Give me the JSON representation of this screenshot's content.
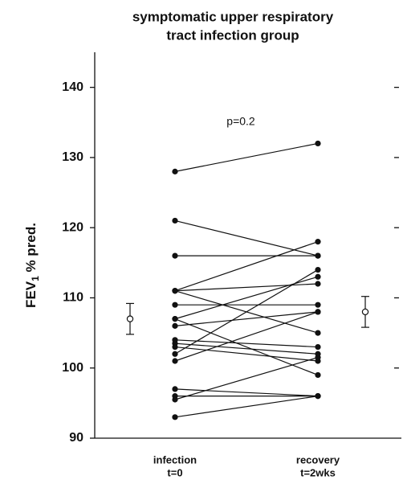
{
  "chart_data": {
    "type": "paired",
    "title": [
      "symptomatic upper respiratory",
      "tract infection group"
    ],
    "ylabel": {
      "main": "FEV",
      "sub": "1",
      "rest": " % pred."
    },
    "annotation": "p=0.2",
    "categories": [
      "infection",
      "recovery"
    ],
    "category_sublabels": [
      "t=0",
      "t=2wks"
    ],
    "ylim": [
      90,
      145
    ],
    "yticks": [
      90,
      100,
      110,
      120,
      130,
      140
    ],
    "series": [
      {
        "values": [
          128,
          132
        ]
      },
      {
        "values": [
          121,
          116
        ]
      },
      {
        "values": [
          116,
          116
        ]
      },
      {
        "values": [
          111,
          118
        ]
      },
      {
        "values": [
          111,
          112
        ]
      },
      {
        "values": [
          111,
          105
        ]
      },
      {
        "values": [
          109,
          109
        ]
      },
      {
        "values": [
          107,
          113
        ]
      },
      {
        "values": [
          107,
          99
        ]
      },
      {
        "values": [
          106,
          108
        ]
      },
      {
        "values": [
          104,
          103
        ]
      },
      {
        "values": [
          103.5,
          102
        ]
      },
      {
        "values": [
          103,
          101
        ]
      },
      {
        "values": [
          102,
          114
        ]
      },
      {
        "values": [
          101,
          108
        ]
      },
      {
        "values": [
          97,
          96
        ]
      },
      {
        "values": [
          96,
          96
        ]
      },
      {
        "values": [
          95.5,
          101.5
        ]
      },
      {
        "values": [
          93,
          96
        ]
      }
    ],
    "means": {
      "values": [
        107,
        108
      ],
      "errors": [
        2.2,
        2.2
      ]
    },
    "color": "#111111"
  }
}
